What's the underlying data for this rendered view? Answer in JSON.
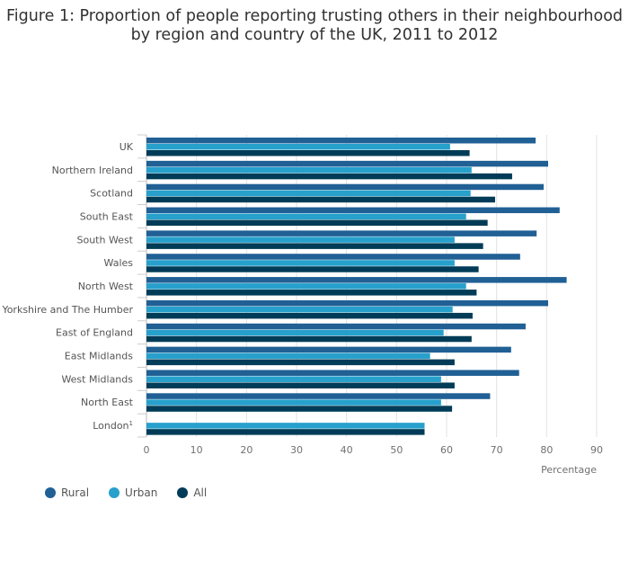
{
  "chart_data": {
    "type": "bar",
    "orientation": "horizontal",
    "title": "Figure 1: Proportion of people reporting trusting others in their neighbourhood by region and country of the UK, 2011 to 2012",
    "xlabel": "Percentage",
    "ylabel": "",
    "xlim": [
      0,
      90
    ],
    "xticks": [
      0,
      10,
      20,
      30,
      40,
      50,
      60,
      70,
      80,
      90
    ],
    "grid": true,
    "legend_position": "bottom-left",
    "categories": [
      "UK",
      "Northern Ireland",
      "Scotland",
      "South East",
      "South West",
      "Wales",
      "North West",
      "Yorkshire and The Humber",
      "East of England",
      "East Midlands",
      "West Midlands",
      "North East",
      "London"
    ],
    "category_footnotes": {
      "London": "1"
    },
    "series": [
      {
        "name": "Rural",
        "color": "#206095",
        "values": [
          77.8,
          80.3,
          79.4,
          82.6,
          78.0,
          74.7,
          84.0,
          80.3,
          75.8,
          72.9,
          74.5,
          68.7,
          null
        ]
      },
      {
        "name": "Urban",
        "color": "#27a0cc",
        "values": [
          60.7,
          65.0,
          64.8,
          63.9,
          61.6,
          61.6,
          63.9,
          61.2,
          59.4,
          56.7,
          58.9,
          58.9,
          55.6
        ]
      },
      {
        "name": "All",
        "color": "#003c57",
        "values": [
          64.6,
          73.1,
          69.7,
          68.2,
          67.3,
          66.4,
          66.0,
          65.2,
          65.0,
          61.6,
          61.6,
          61.1,
          55.6
        ]
      }
    ]
  }
}
